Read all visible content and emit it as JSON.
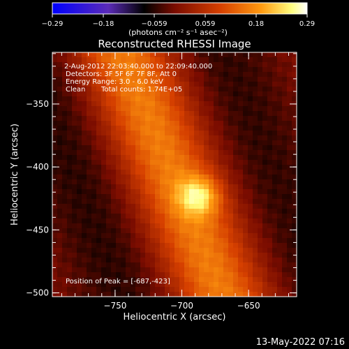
{
  "colorbar": {
    "ticks": [
      "-0.29",
      "-0.18",
      "-0.059",
      "0.059",
      "0.18",
      "0.29"
    ],
    "unit_label": "(photons cm⁻² s⁻¹ asec⁻²)",
    "range": [
      -0.29,
      0.29
    ],
    "colors": [
      "#0000ff",
      "#5b2bb8",
      "#000000",
      "#7a0c00",
      "#d64000",
      "#ff9a10",
      "#ffff80",
      "#ffffff"
    ]
  },
  "chart_data": {
    "type": "heatmap",
    "title": "Reconstructed RHESSI Image",
    "xlabel": "Heliocentric X (arcsec)",
    "ylabel": "Heliocentric Y (arcsec)",
    "xlim": [
      -797,
      -614
    ],
    "ylim": [
      -503,
      -309
    ],
    "xticks": [
      {
        "v": -750,
        "label": "−750"
      },
      {
        "v": -700,
        "label": "−700"
      },
      {
        "v": -650,
        "label": "−650"
      }
    ],
    "yticks": [
      {
        "v": -350,
        "label": "−350"
      },
      {
        "v": -400,
        "label": "−400"
      },
      {
        "v": -450,
        "label": "−450"
      },
      {
        "v": -500,
        "label": "−500"
      }
    ],
    "source": {
      "peak_x": -687,
      "peak_y": -423,
      "ridge_top_x": -745,
      "ridge_bottom_x": -670,
      "peak_value": 0.29,
      "min_value": -0.1
    }
  },
  "info": {
    "line1": " 2-Aug-2012 22:03:40.000 to 22:09:40.000",
    "line2": "Detectors: 3F 5F 6F 7F 8F, Att 0",
    "line3": "Energy Range: 3.0 - 6.0 keV",
    "line4_a": "Clean",
    "line4_b": "Total counts: 1.74E+05",
    "peak_label": "Position of Peak = [-687,-423]"
  },
  "footer": {
    "date": "13-May-2022 07:16"
  }
}
